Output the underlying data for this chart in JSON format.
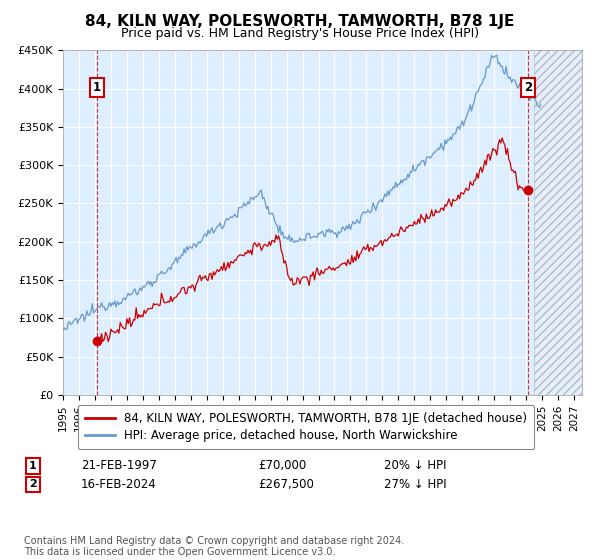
{
  "title": "84, KILN WAY, POLESWORTH, TAMWORTH, B78 1JE",
  "subtitle": "Price paid vs. HM Land Registry's House Price Index (HPI)",
  "ylim": [
    0,
    450000
  ],
  "yticks": [
    0,
    50000,
    100000,
    150000,
    200000,
    250000,
    300000,
    350000,
    400000,
    450000
  ],
  "ytick_labels": [
    "£0",
    "£50K",
    "£100K",
    "£150K",
    "£200K",
    "£250K",
    "£300K",
    "£350K",
    "£400K",
    "£450K"
  ],
  "xlim_start": 1995.0,
  "xlim_end": 2027.5,
  "hatch_start": 2024.5,
  "transaction1_x": 1997.13,
  "transaction1_y": 70000,
  "transaction1_label": "1",
  "transaction1_date": "21-FEB-1997",
  "transaction1_price": "£70,000",
  "transaction1_hpi": "20% ↓ HPI",
  "transaction2_x": 2024.12,
  "transaction2_y": 267500,
  "transaction2_label": "2",
  "transaction2_date": "16-FEB-2024",
  "transaction2_price": "£267,500",
  "transaction2_hpi": "27% ↓ HPI",
  "legend1": "84, KILN WAY, POLESWORTH, TAMWORTH, B78 1JE (detached house)",
  "legend2": "HPI: Average price, detached house, North Warwickshire",
  "red_color": "#cc0000",
  "blue_color": "#6699cc",
  "bg_color": "#ddeeff",
  "grid_color": "#ffffff",
  "annotation_box_color": "#cc0000",
  "copyright": "Contains HM Land Registry data © Crown copyright and database right 2024.\nThis data is licensed under the Open Government Licence v3.0.",
  "title_fontsize": 11,
  "subtitle_fontsize": 9,
  "tick_fontsize": 8,
  "legend_fontsize": 8.5,
  "note_fontsize": 7
}
